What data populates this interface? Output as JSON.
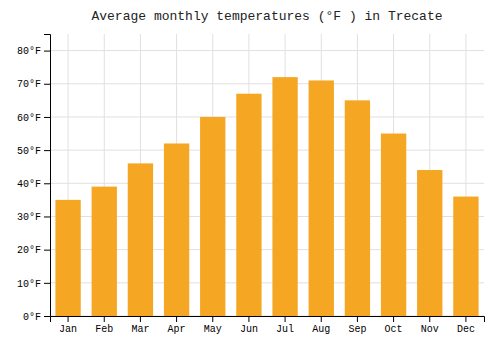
{
  "chart_data": {
    "type": "bar",
    "title": "Average monthly temperatures (°F ) in Trecate",
    "categories": [
      "Jan",
      "Feb",
      "Mar",
      "Apr",
      "May",
      "Jun",
      "Jul",
      "Aug",
      "Sep",
      "Oct",
      "Nov",
      "Dec"
    ],
    "values": [
      35,
      39,
      46,
      52,
      60,
      67,
      72,
      71,
      65,
      55,
      44,
      36
    ],
    "color": "#F5A623",
    "ylim": [
      0,
      85
    ],
    "yticks": [
      {
        "value": 0,
        "label": "0°F"
      },
      {
        "value": 10,
        "label": "10°F"
      },
      {
        "value": 20,
        "label": "20°F"
      },
      {
        "value": 30,
        "label": "30°F"
      },
      {
        "value": 40,
        "label": "40°F"
      },
      {
        "value": 50,
        "label": "50°F"
      },
      {
        "value": 60,
        "label": "60°F"
      },
      {
        "value": 70,
        "label": "70°F"
      },
      {
        "value": 80,
        "label": "80°F"
      }
    ],
    "grid": true
  }
}
